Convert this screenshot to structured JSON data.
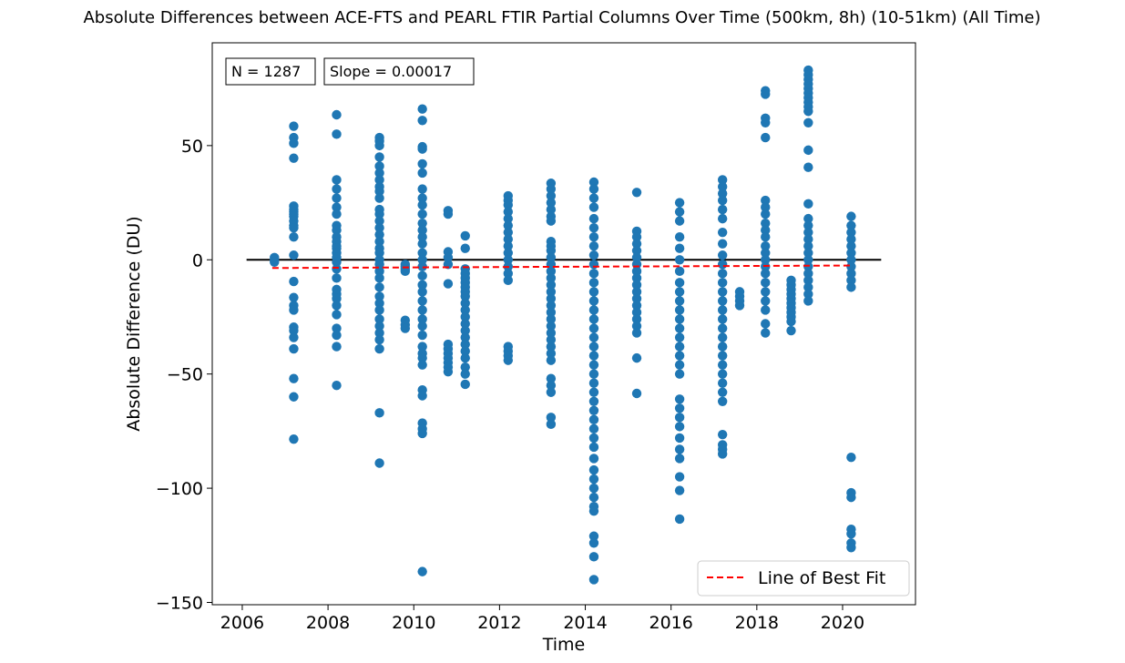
{
  "chart_data": {
    "type": "scatter",
    "title": "Absolute Differences between ACE-FTS and PEARL FTIR Partial Columns Over Time (500km, 8h) (10-51km) (All Time)",
    "xlabel": "Time",
    "ylabel": "Absolute Difference (DU)",
    "xlim": [
      2005.3,
      2021.7
    ],
    "ylim": [
      -151,
      95
    ],
    "x_ticks": [
      "2006",
      "2008",
      "2010",
      "2012",
      "2014",
      "2016",
      "2018",
      "2020"
    ],
    "y_ticks": [
      "50",
      "0",
      "−50",
      "−100",
      "−150"
    ],
    "annotations": {
      "count": "N = 1287",
      "slope": "Slope = 0.00017"
    },
    "legend": {
      "position": "bottom-right",
      "entries": [
        "Line of Best Fit"
      ]
    },
    "colors": {
      "points": "#1f77b4",
      "fit_line": "#ff0000",
      "zero_line": "#000000"
    },
    "zero_line": {
      "x": [
        2006.1,
        2020.9
      ],
      "y": 0
    },
    "fit_line": {
      "name": "Line of Best Fit",
      "x": [
        2006.7,
        2020.2
      ],
      "y": [
        -3.6,
        -2.5
      ]
    },
    "series": [
      {
        "x": 2006.75,
        "values": [
          1,
          0,
          -1
        ]
      },
      {
        "x": 2007.2,
        "values": [
          58.5,
          53.5,
          51,
          44.5,
          23.5,
          22,
          21,
          20,
          19,
          17,
          15,
          14,
          10,
          2,
          -9.5,
          -16.5,
          -20,
          -22,
          -29.5,
          -31,
          -34,
          -39,
          -52,
          -60,
          -78.5
        ]
      },
      {
        "x": 2008.2,
        "values": [
          63.5,
          55,
          35,
          31,
          27,
          23,
          20,
          15,
          13,
          10,
          8,
          6,
          5,
          3,
          1,
          -1,
          -4,
          -8,
          -13,
          -15,
          -17,
          -20,
          -24,
          -30,
          -33,
          -38,
          -55
        ]
      },
      {
        "x": 2009.2,
        "values": [
          53.5,
          52,
          50,
          45,
          41,
          38,
          35,
          32,
          30,
          27,
          22,
          20,
          17,
          14,
          11,
          8,
          5,
          3,
          0,
          -2,
          -5,
          -8,
          -12,
          -16,
          -19,
          -22,
          -26,
          -29,
          -32,
          -35,
          -39,
          -67,
          -89
        ]
      },
      {
        "x": 2009.8,
        "values": [
          -2,
          -3,
          -4,
          -5,
          -26.5,
          -28.5,
          -30
        ]
      },
      {
        "x": 2010.2,
        "values": [
          66,
          61,
          49.5,
          48.5,
          42,
          38,
          31,
          27,
          24,
          20,
          16,
          13,
          10,
          7,
          3,
          0,
          -3,
          -7,
          -11,
          -14,
          -18,
          -22,
          -26,
          -29,
          -33,
          -38,
          -41,
          -43,
          -46,
          -57,
          -59.5,
          -71.5,
          -74,
          -76,
          -136.5
        ]
      },
      {
        "x": 2010.8,
        "values": [
          21.5,
          20,
          3.5,
          1,
          -2,
          -10.5,
          -37,
          -39,
          -41,
          -43,
          -45,
          -47,
          -49
        ]
      },
      {
        "x": 2011.2,
        "values": [
          10.5,
          5,
          -4,
          -6,
          -8,
          -10,
          -12,
          -14,
          -16,
          -19,
          -22,
          -25,
          -28,
          -31,
          -34,
          -37,
          -40,
          -43,
          -47,
          -50,
          -54.5
        ]
      },
      {
        "x": 2012.2,
        "values": [
          28,
          26,
          24,
          21,
          18,
          15,
          12,
          9,
          6,
          3,
          0,
          -3,
          -6,
          -9,
          -38,
          -40,
          -42,
          -44
        ]
      },
      {
        "x": 2013.2,
        "values": [
          33.5,
          31,
          28,
          25,
          22,
          19,
          17,
          8,
          6,
          4,
          1,
          -2,
          -5,
          -8,
          -11,
          -14,
          -17,
          -20,
          -23,
          -26,
          -29,
          -32,
          -35,
          -38,
          -41,
          -44,
          -52,
          -55,
          -58,
          -69,
          -72
        ]
      },
      {
        "x": 2014.2,
        "values": [
          34,
          31,
          27,
          23,
          18,
          14,
          10,
          6,
          2,
          -2,
          -6,
          -10,
          -14,
          -18,
          -22,
          -26,
          -30,
          -34,
          -38,
          -42,
          -46,
          -50,
          -54,
          -58,
          -62,
          -66,
          -70,
          -74,
          -78,
          -82,
          -87,
          -92,
          -96,
          -100,
          -104,
          -108,
          -110,
          -121,
          -124,
          -130,
          -140
        ]
      },
      {
        "x": 2015.2,
        "values": [
          29.5,
          12.5,
          10,
          7,
          4,
          1,
          -2,
          -5,
          -8,
          -11,
          -14,
          -17,
          -20,
          -23,
          -26,
          -29,
          -32,
          -43,
          -58.5
        ]
      },
      {
        "x": 2016.2,
        "values": [
          25,
          21,
          17,
          10,
          5,
          0,
          -5,
          -10,
          -14,
          -18,
          -22,
          -26,
          -30,
          -34,
          -38,
          -42,
          -46,
          -50,
          -61,
          -65,
          -69,
          -73,
          -78,
          -83,
          -87,
          -95,
          -101,
          -113.5
        ]
      },
      {
        "x": 2017.2,
        "values": [
          35,
          32,
          29,
          26,
          22,
          18,
          12,
          7,
          2,
          -2,
          -6,
          -10,
          -14,
          -18,
          -22,
          -26,
          -30,
          -34,
          -38,
          -42,
          -46,
          -50,
          -54,
          -58,
          -62,
          -76.5,
          -81,
          -83,
          -85
        ]
      },
      {
        "x": 2017.6,
        "values": [
          -14,
          -16,
          -18,
          -20
        ]
      },
      {
        "x": 2018.2,
        "values": [
          74,
          72.5,
          62,
          60,
          53.5,
          26,
          23,
          20,
          16,
          13,
          10,
          6,
          3,
          0,
          -3,
          -6,
          -10,
          -14,
          -18,
          -22,
          -28,
          -32
        ]
      },
      {
        "x": 2018.8,
        "values": [
          -9,
          -11,
          -13,
          -15,
          -17,
          -19,
          -21,
          -23,
          -25,
          -27,
          -31
        ]
      },
      {
        "x": 2019.2,
        "values": [
          83,
          81,
          79,
          77,
          75,
          73,
          71,
          69,
          67,
          65,
          60,
          48,
          40.5,
          24.5,
          18,
          15,
          12,
          9,
          6,
          3,
          0,
          -3,
          -6,
          -9,
          -12,
          -15,
          -18
        ]
      },
      {
        "x": 2020.2,
        "values": [
          19,
          15,
          12,
          9,
          6,
          3,
          0,
          -3,
          -6,
          -9,
          -12,
          -86.5,
          -102,
          -104,
          -118,
          -120,
          -124,
          -126,
          -134
        ]
      }
    ]
  }
}
